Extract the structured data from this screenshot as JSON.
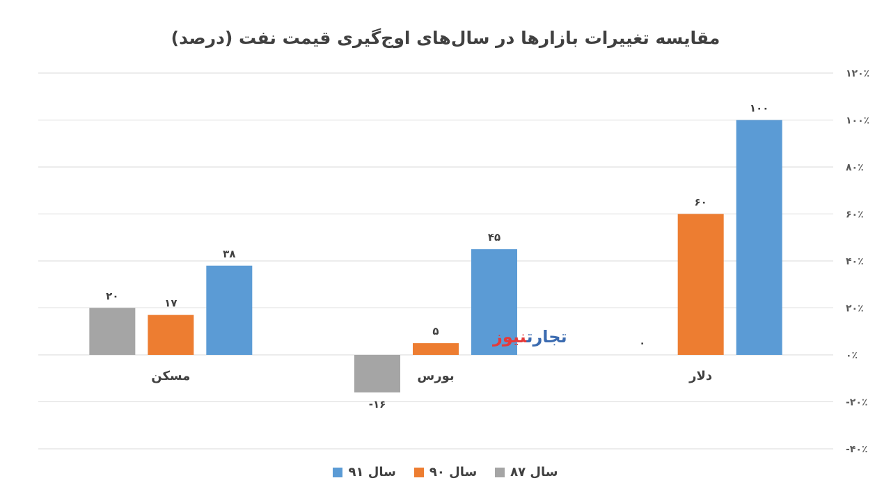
{
  "chart_data": {
    "type": "bar",
    "title": "مقایسه تغییرات بازارها در سال‌های اوج‌گیری قیمت نفت (درصد)",
    "categories": [
      "مسکن",
      "بورس",
      "دلار"
    ],
    "series": [
      {
        "name": "سال ۸۷",
        "color": "#a5a5a5",
        "values": [
          20,
          -16,
          0
        ],
        "labels": [
          "۲۰",
          "-۱۶",
          "۰"
        ]
      },
      {
        "name": "سال ۹۰",
        "color": "#ed7d31",
        "values": [
          17,
          5,
          60
        ],
        "labels": [
          "۱۷",
          "۵",
          "۶۰"
        ]
      },
      {
        "name": "سال ۹۱",
        "color": "#5b9bd5",
        "values": [
          38,
          45,
          100
        ],
        "labels": [
          "۳۸",
          "۴۵",
          "۱۰۰"
        ]
      }
    ],
    "ylim": [
      -40,
      120
    ],
    "yticks": [
      120,
      100,
      80,
      60,
      40,
      20,
      0,
      -20,
      -40
    ],
    "ytick_labels": [
      "۱۲۰٪",
      "۱۰۰٪",
      "۸۰٪",
      "۶۰٪",
      "۴۰٪",
      "۲۰٪",
      "۰٪",
      "-۲۰٪",
      "-۴۰٪"
    ],
    "grid": true,
    "legend": "bottom"
  },
  "watermark": {
    "part1": "تجارت",
    "part2": "نیوز"
  }
}
